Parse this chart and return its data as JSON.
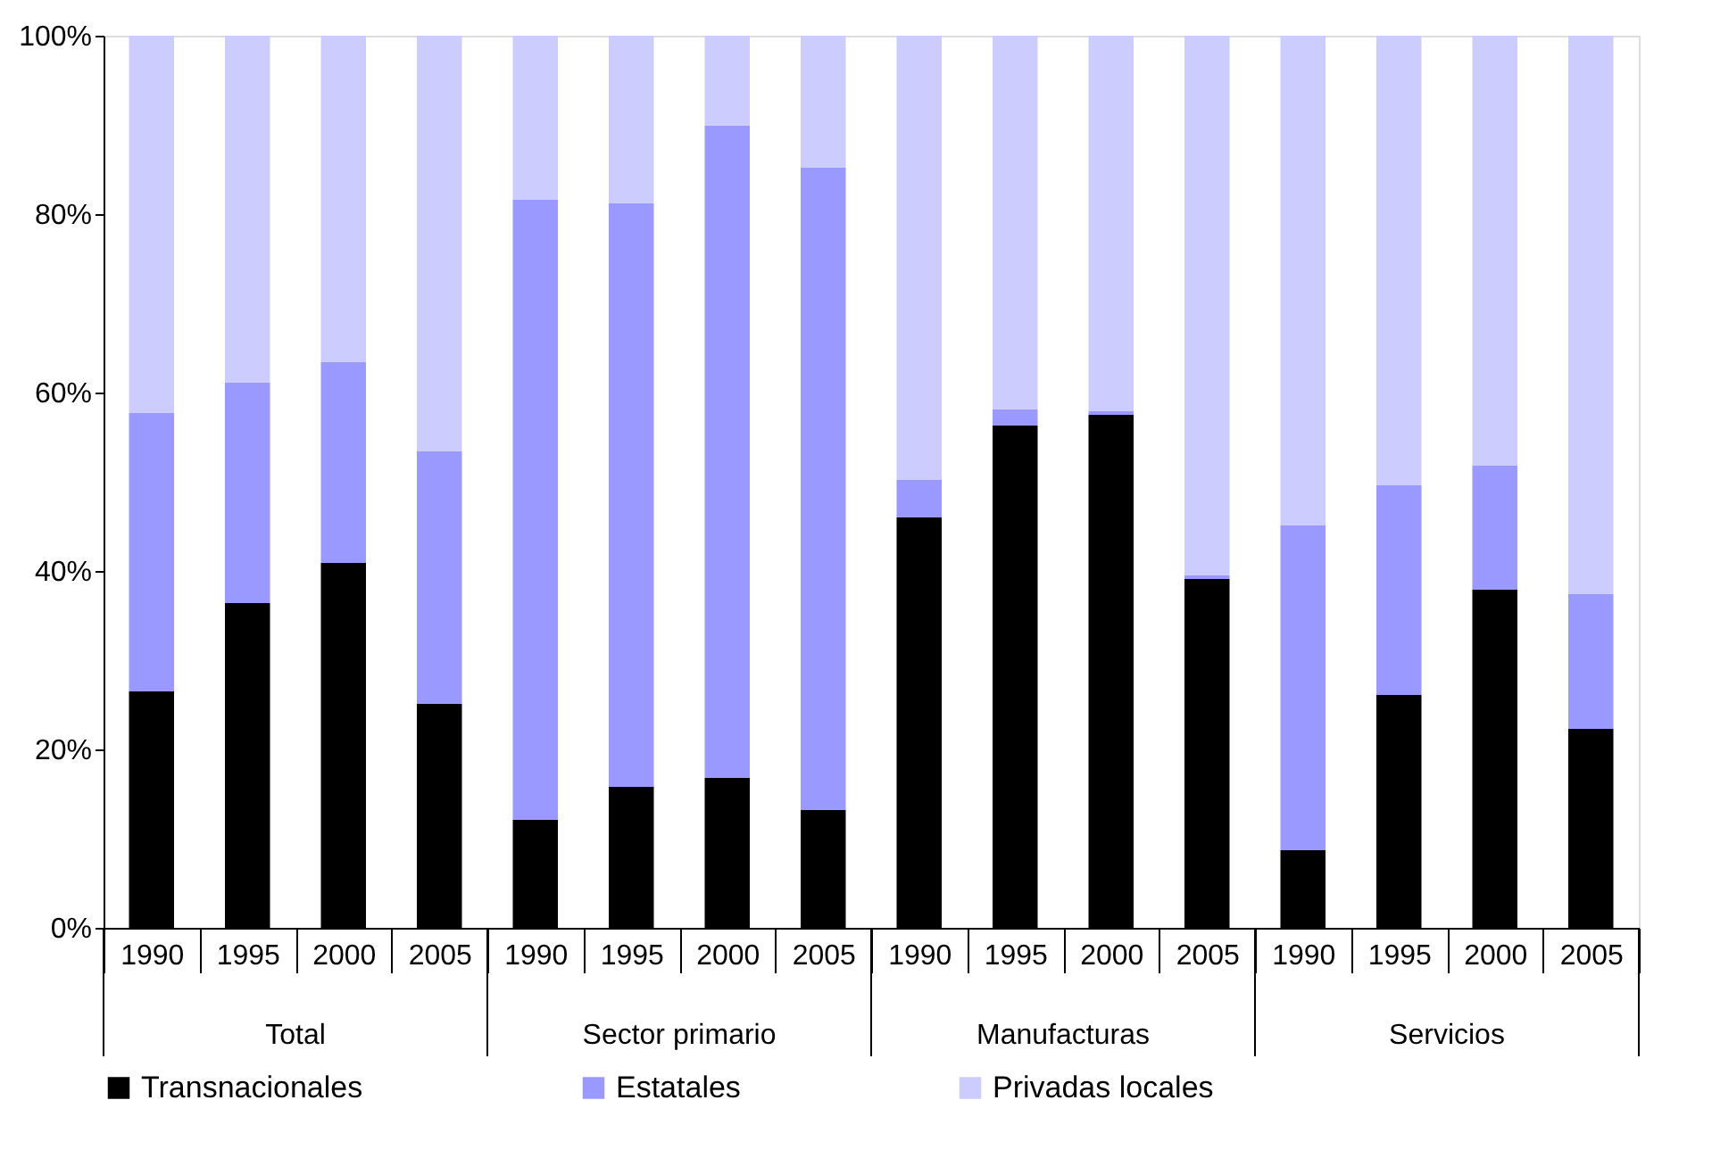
{
  "chart_data": {
    "type": "bar",
    "stacked": true,
    "categories": [
      "1990",
      "1995",
      "2000",
      "2005",
      "1990",
      "1995",
      "2000",
      "2005",
      "1990",
      "1995",
      "2000",
      "2005",
      "1990",
      "1995",
      "2000",
      "2005"
    ],
    "series": [
      {
        "name": "Transnacionales",
        "color": "#000000",
        "values": [
          26.5,
          36.4,
          40.9,
          25.1,
          12.1,
          15.8,
          16.8,
          13.2,
          46.0,
          56.3,
          57.5,
          39.1,
          8.7,
          26.1,
          37.9,
          22.3
        ]
      },
      {
        "name": "Estatales",
        "color": "#9999ff",
        "values": [
          31.2,
          24.7,
          22.5,
          28.3,
          69.5,
          65.4,
          73.1,
          72.0,
          4.2,
          1.8,
          0.4,
          0.4,
          36.4,
          23.5,
          13.9,
          15.1
        ]
      },
      {
        "name": "Privadas locales",
        "color": "#ccccff",
        "values": [
          42.3,
          38.9,
          36.6,
          46.6,
          18.4,
          18.8,
          10.1,
          14.8,
          49.8,
          41.9,
          42.1,
          60.5,
          54.9,
          50.4,
          48.2,
          62.6
        ]
      }
    ],
    "ylim": [
      0,
      100
    ],
    "yticks": [
      {
        "value": 0,
        "label": "0%"
      },
      {
        "value": 20,
        "label": "20%"
      },
      {
        "value": 40,
        "label": "40%"
      },
      {
        "value": 60,
        "label": "60%"
      },
      {
        "value": 80,
        "label": "80%"
      },
      {
        "value": 100,
        "label": "100%"
      }
    ],
    "annotations": [
      "Total",
      "Sector primario",
      "Manufacturas",
      "Servicios"
    ],
    "legend": "bottom",
    "grid": false
  }
}
